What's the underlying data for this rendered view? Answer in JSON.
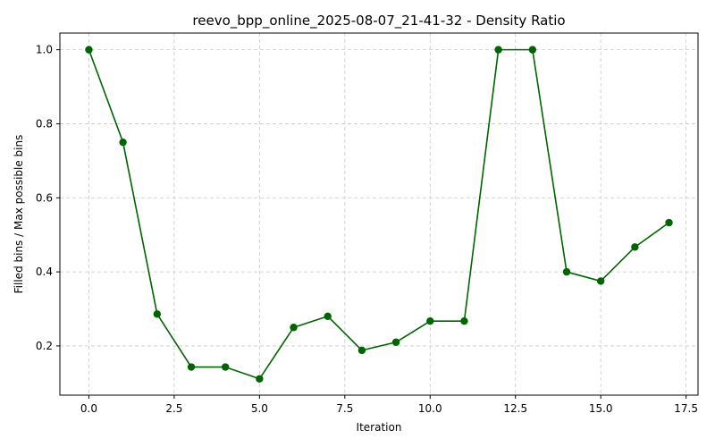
{
  "chart_data": {
    "type": "line",
    "title": "reevo_bpp_online_2025-08-07_21-41-32 - Density Ratio",
    "xlabel": "Iteration",
    "ylabel": "Filled bins / Max possible bins",
    "xlim": [
      -0.85,
      17.85
    ],
    "ylim": [
      0.067,
      1.045
    ],
    "x_ticks": [
      0.0,
      2.5,
      5.0,
      7.5,
      10.0,
      12.5,
      15.0,
      17.5
    ],
    "x_tick_labels": [
      "0.0",
      "2.5",
      "5.0",
      "7.5",
      "10.0",
      "12.5",
      "15.0",
      "17.5"
    ],
    "y_ticks": [
      0.2,
      0.4,
      0.6,
      0.8,
      1.0
    ],
    "y_tick_labels": [
      "0.2",
      "0.4",
      "0.6",
      "0.8",
      "1.0"
    ],
    "grid": true,
    "series": [
      {
        "color": "#006400",
        "marker": "circle",
        "x": [
          0,
          1,
          2,
          3,
          4,
          5,
          6,
          7,
          8,
          9,
          10,
          11,
          12,
          13,
          14,
          15,
          16,
          17
        ],
        "y": [
          1.0,
          0.75,
          0.286,
          0.143,
          0.143,
          0.111,
          0.25,
          0.28,
          0.188,
          0.21,
          0.267,
          0.267,
          1.0,
          1.0,
          0.4,
          0.375,
          0.467,
          0.533
        ]
      }
    ]
  }
}
